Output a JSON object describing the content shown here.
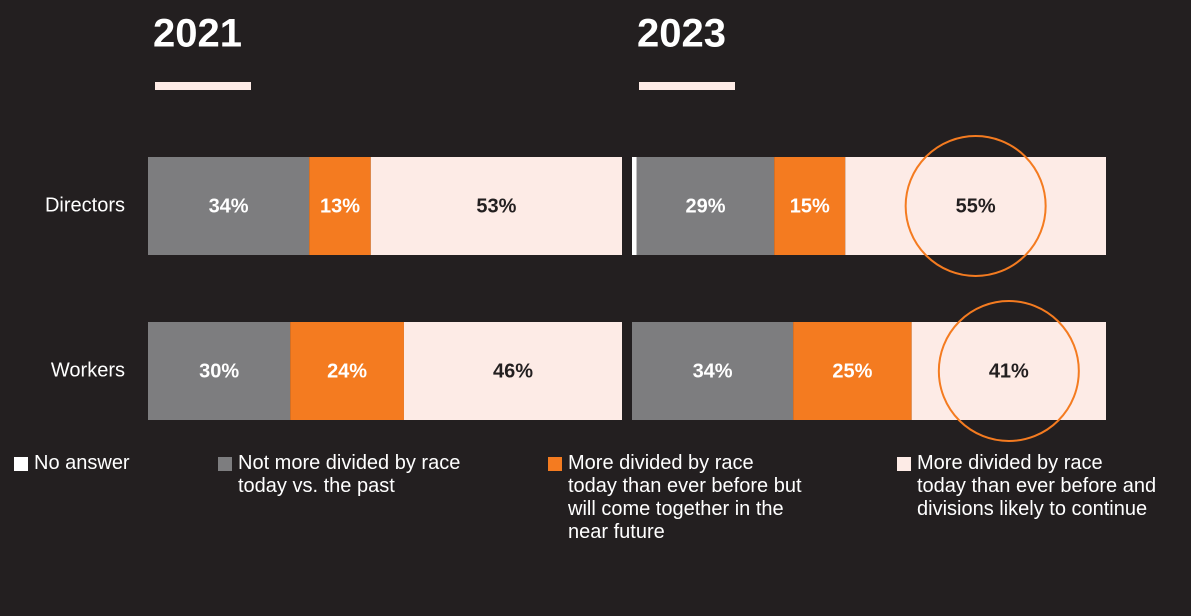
{
  "chart_data": {
    "type": "bar",
    "orientation": "horizontal",
    "stacked": true,
    "xlim": [
      0,
      100
    ],
    "categories": [
      "Directors",
      "Workers"
    ],
    "series": [
      {
        "name": "No answer",
        "color": "#ffffff"
      },
      {
        "name": "Not more divided by race today vs. the past",
        "color": "#7d7d7f"
      },
      {
        "name": "More divided by race today than ever before but will come together in the near future",
        "color": "#f47b20"
      },
      {
        "name": "More divided by race today than ever before and divisions likely to continue",
        "color": "#fdebe6"
      }
    ],
    "panels": [
      {
        "title": "2021",
        "series": [
          {
            "values": [
              0,
              0
            ]
          },
          {
            "values": [
              34,
              30
            ],
            "value_labels": [
              "34%",
              "30%"
            ]
          },
          {
            "values": [
              13,
              24
            ],
            "value_labels": [
              "13%",
              "24%"
            ]
          },
          {
            "values": [
              53,
              46
            ],
            "value_labels": [
              "53%",
              "46%"
            ]
          }
        ]
      },
      {
        "title": "2023",
        "series": [
          {
            "values": [
              1,
              0
            ]
          },
          {
            "values": [
              29,
              34
            ],
            "value_labels": [
              "29%",
              "34%"
            ]
          },
          {
            "values": [
              15,
              25
            ],
            "value_labels": [
              "15%",
              "25%"
            ]
          },
          {
            "values": [
              55,
              41
            ],
            "value_labels": [
              "55%",
              "41%"
            ],
            "circled": true
          }
        ]
      }
    ]
  }
}
